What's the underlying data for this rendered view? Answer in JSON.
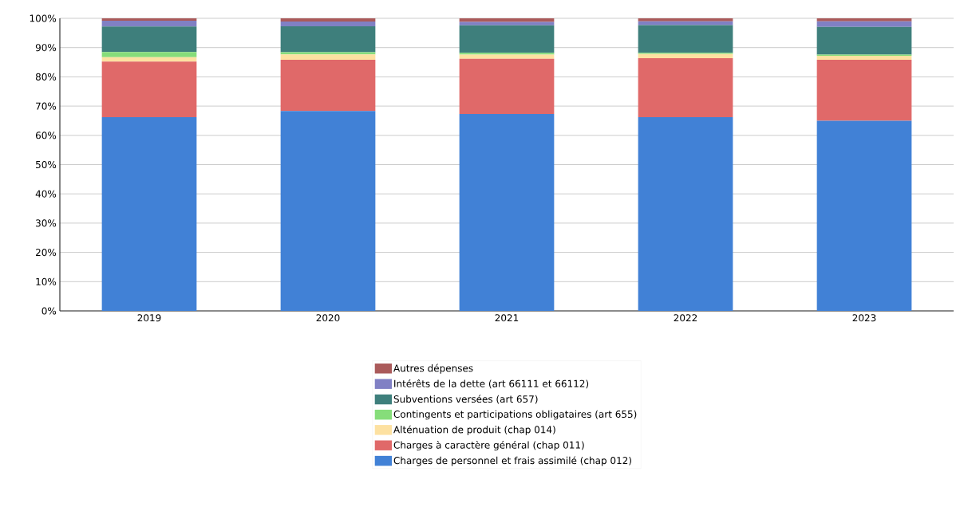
{
  "chart_data": {
    "type": "bar",
    "stacked": true,
    "categories": [
      "2019",
      "2020",
      "2021",
      "2022",
      "2023"
    ],
    "series": [
      {
        "name": "Charges de personnel et frais assimilé (chap 012)",
        "color": "#4181d6",
        "values": [
          66.2,
          68.3,
          67.3,
          66.2,
          65.0
        ]
      },
      {
        "name": "Charges à caractère général (chap 011)",
        "color": "#e06969",
        "values": [
          19.0,
          17.5,
          18.9,
          20.2,
          20.8
        ]
      },
      {
        "name": "Alténuation de produit (chap 014)",
        "color": "#fde1a1",
        "values": [
          1.5,
          1.9,
          1.4,
          1.4,
          1.4
        ]
      },
      {
        "name": "Contingents et participations obligataires (art 655)",
        "color": "#86dd7a",
        "values": [
          1.8,
          0.7,
          0.6,
          0.4,
          0.4
        ]
      },
      {
        "name": "Subventions versées (art 657)",
        "color": "#3e7f7c",
        "values": [
          8.7,
          8.9,
          9.4,
          9.5,
          9.5
        ]
      },
      {
        "name": "Intérêts de la dette (art 66111 et 66112)",
        "color": "#8080c4",
        "values": [
          2.0,
          1.6,
          1.2,
          1.3,
          1.9
        ]
      },
      {
        "name": "Autres dépenses",
        "color": "#aa5a5a",
        "values": [
          0.8,
          1.1,
          1.2,
          1.0,
          1.0
        ]
      }
    ],
    "ylim": [
      0,
      100
    ],
    "yticks": [
      {
        "value": 0,
        "label": "0%"
      },
      {
        "value": 10,
        "label": "10%"
      },
      {
        "value": 20,
        "label": "20%"
      },
      {
        "value": 30,
        "label": "30%"
      },
      {
        "value": 40,
        "label": "40%"
      },
      {
        "value": 50,
        "label": "50%"
      },
      {
        "value": 60,
        "label": "60%"
      },
      {
        "value": 70,
        "label": "70%"
      },
      {
        "value": 80,
        "label": "80%"
      },
      {
        "value": 90,
        "label": "90%"
      },
      {
        "value": 100,
        "label": "100%"
      }
    ],
    "grid": "y",
    "legend": "bottom"
  }
}
